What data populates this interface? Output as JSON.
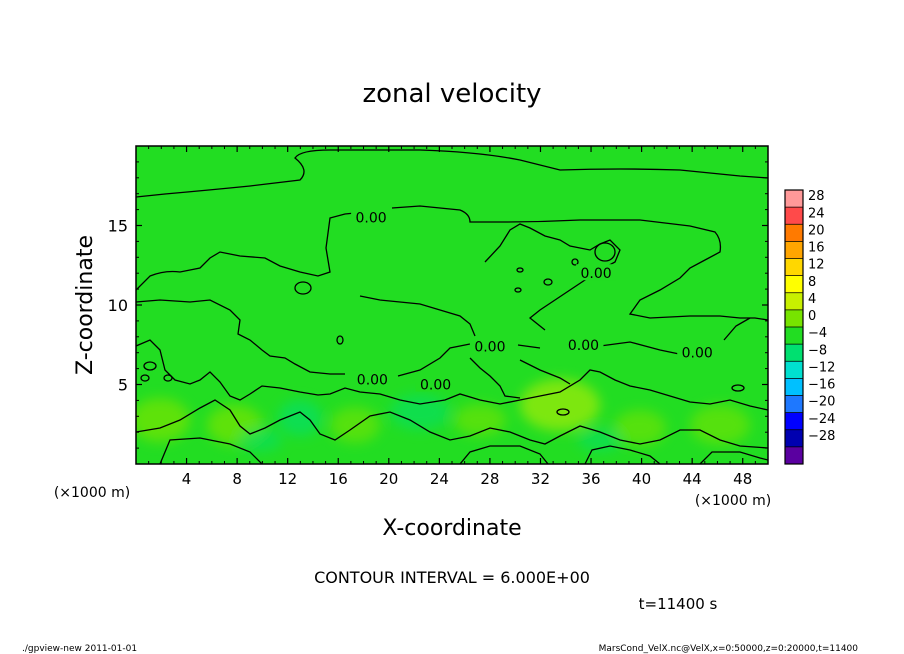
{
  "chart_data": {
    "type": "heatmap",
    "title": "zonal velocity",
    "xlabel": "X-coordinate",
    "ylabel": "Z-coordinate",
    "x_unit": "(×1000 m)",
    "y_unit": "(×1000 m)",
    "xlim": [
      0,
      50
    ],
    "ylim": [
      0,
      20
    ],
    "x_ticks": [
      4,
      8,
      12,
      16,
      20,
      24,
      28,
      32,
      36,
      40,
      44,
      48
    ],
    "y_ticks": [
      5,
      10,
      15
    ],
    "contour_interval_text": "CONTOUR INTERVAL = 6.000E+00",
    "time_text": "t=11400 s",
    "contour_labels": [
      {
        "text": "0.00",
        "x": 18.6,
        "z": 15.5
      },
      {
        "text": "0.00",
        "x": 28.0,
        "z": 7.4
      },
      {
        "text": "0.00",
        "x": 35.4,
        "z": 7.5
      },
      {
        "text": "0.00",
        "x": 36.4,
        "z": 12.0
      },
      {
        "text": "0.00",
        "x": 44.4,
        "z": 7.0
      },
      {
        "text": "0.00",
        "x": 18.7,
        "z": 5.3
      },
      {
        "text": "0.00",
        "x": 23.7,
        "z": 5.0
      }
    ],
    "colorbar": {
      "levels": [
        28,
        24,
        20,
        16,
        12,
        8,
        4,
        0,
        -4,
        -8,
        -12,
        -16,
        -20,
        -24,
        -28
      ],
      "colors": [
        "#ff9999",
        "#ff4a4a",
        "#ff7a00",
        "#ffa500",
        "#ffd700",
        "#ffff00",
        "#c8f000",
        "#77e400",
        "#22dd22",
        "#00e070",
        "#00e0d0",
        "#00c0ff",
        "#1e78ff",
        "#0000ff",
        "#0000b0",
        "#5a00a0"
      ]
    }
  },
  "footer": {
    "left": "./gpview-new  2011-01-01",
    "right": "MarsCond_VelX.nc@VelX,x=0:50000,z=0:20000,t=11400"
  }
}
